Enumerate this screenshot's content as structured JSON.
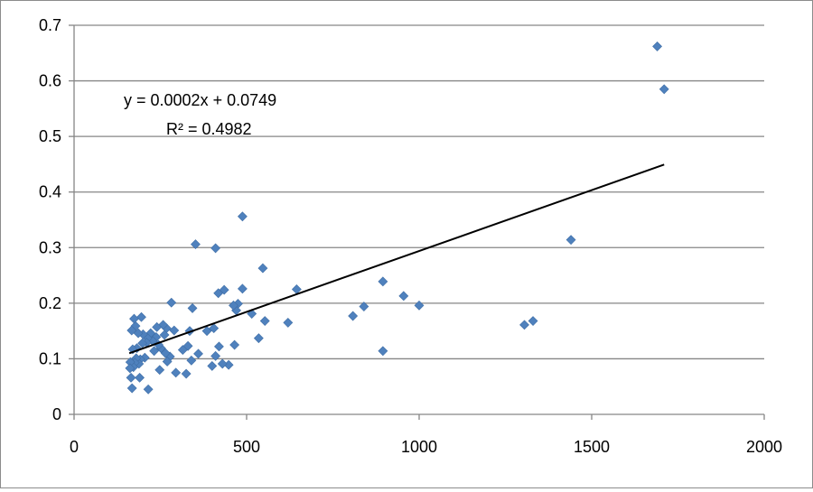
{
  "chart_data": {
    "type": "scatter",
    "xlim": [
      0,
      2000
    ],
    "ylim": [
      0,
      0.7
    ],
    "x_ticks": [
      "0",
      "500",
      "1000",
      "1500",
      "2000"
    ],
    "y_ticks": [
      "0",
      "0.1",
      "0.2",
      "0.3",
      "0.4",
      "0.5",
      "0.6",
      "0.7"
    ],
    "grid": "horizontal",
    "marker_color": "#4F81BD",
    "trendline_color": "#000000",
    "trendline": {
      "type": "linear",
      "equation_label": "y = 0.0002x + 0.0749",
      "r2_label": "R² = 0.4982",
      "x_range": [
        160,
        1710
      ]
    },
    "points": [
      [
        1690,
        0.662
      ],
      [
        1710,
        0.585
      ],
      [
        1440,
        0.314
      ],
      [
        1330,
        0.168
      ],
      [
        1305,
        0.161
      ],
      [
        1000,
        0.196
      ],
      [
        955,
        0.213
      ],
      [
        895,
        0.239
      ],
      [
        895,
        0.114
      ],
      [
        840,
        0.194
      ],
      [
        808,
        0.177
      ],
      [
        645,
        0.225
      ],
      [
        620,
        0.165
      ],
      [
        553,
        0.168
      ],
      [
        547,
        0.263
      ],
      [
        535,
        0.137
      ],
      [
        515,
        0.181
      ],
      [
        488,
        0.356
      ],
      [
        488,
        0.226
      ],
      [
        475,
        0.199
      ],
      [
        470,
        0.187
      ],
      [
        462,
        0.196
      ],
      [
        465,
        0.125
      ],
      [
        448,
        0.089
      ],
      [
        435,
        0.224
      ],
      [
        430,
        0.091
      ],
      [
        420,
        0.122
      ],
      [
        418,
        0.218
      ],
      [
        410,
        0.299
      ],
      [
        410,
        0.105
      ],
      [
        405,
        0.155
      ],
      [
        400,
        0.087
      ],
      [
        385,
        0.15
      ],
      [
        360,
        0.109
      ],
      [
        352,
        0.306
      ],
      [
        343,
        0.191
      ],
      [
        340,
        0.097
      ],
      [
        335,
        0.15
      ],
      [
        330,
        0.123
      ],
      [
        325,
        0.073
      ],
      [
        315,
        0.116
      ],
      [
        295,
        0.075
      ],
      [
        290,
        0.151
      ],
      [
        282,
        0.201
      ],
      [
        278,
        0.104
      ],
      [
        270,
        0.095
      ],
      [
        268,
        0.155
      ],
      [
        265,
        0.11
      ],
      [
        262,
        0.143
      ],
      [
        258,
        0.161
      ],
      [
        252,
        0.119
      ],
      [
        248,
        0.08
      ],
      [
        245,
        0.125
      ],
      [
        240,
        0.157
      ],
      [
        238,
        0.139
      ],
      [
        232,
        0.114
      ],
      [
        228,
        0.132
      ],
      [
        222,
        0.146
      ],
      [
        215,
        0.045
      ],
      [
        213,
        0.137
      ],
      [
        210,
        0.129
      ],
      [
        205,
        0.102
      ],
      [
        200,
        0.144
      ],
      [
        198,
        0.128
      ],
      [
        195,
        0.175
      ],
      [
        192,
        0.099
      ],
      [
        190,
        0.066
      ],
      [
        188,
        0.091
      ],
      [
        186,
        0.146
      ],
      [
        182,
        0.119
      ],
      [
        180,
        0.101
      ],
      [
        178,
        0.159
      ],
      [
        176,
        0.093
      ],
      [
        174,
        0.172
      ],
      [
        172,
        0.085
      ],
      [
        170,
        0.117
      ],
      [
        168,
        0.047
      ],
      [
        167,
        0.151
      ],
      [
        165,
        0.066
      ],
      [
        163,
        0.094
      ],
      [
        162,
        0.083
      ]
    ]
  }
}
